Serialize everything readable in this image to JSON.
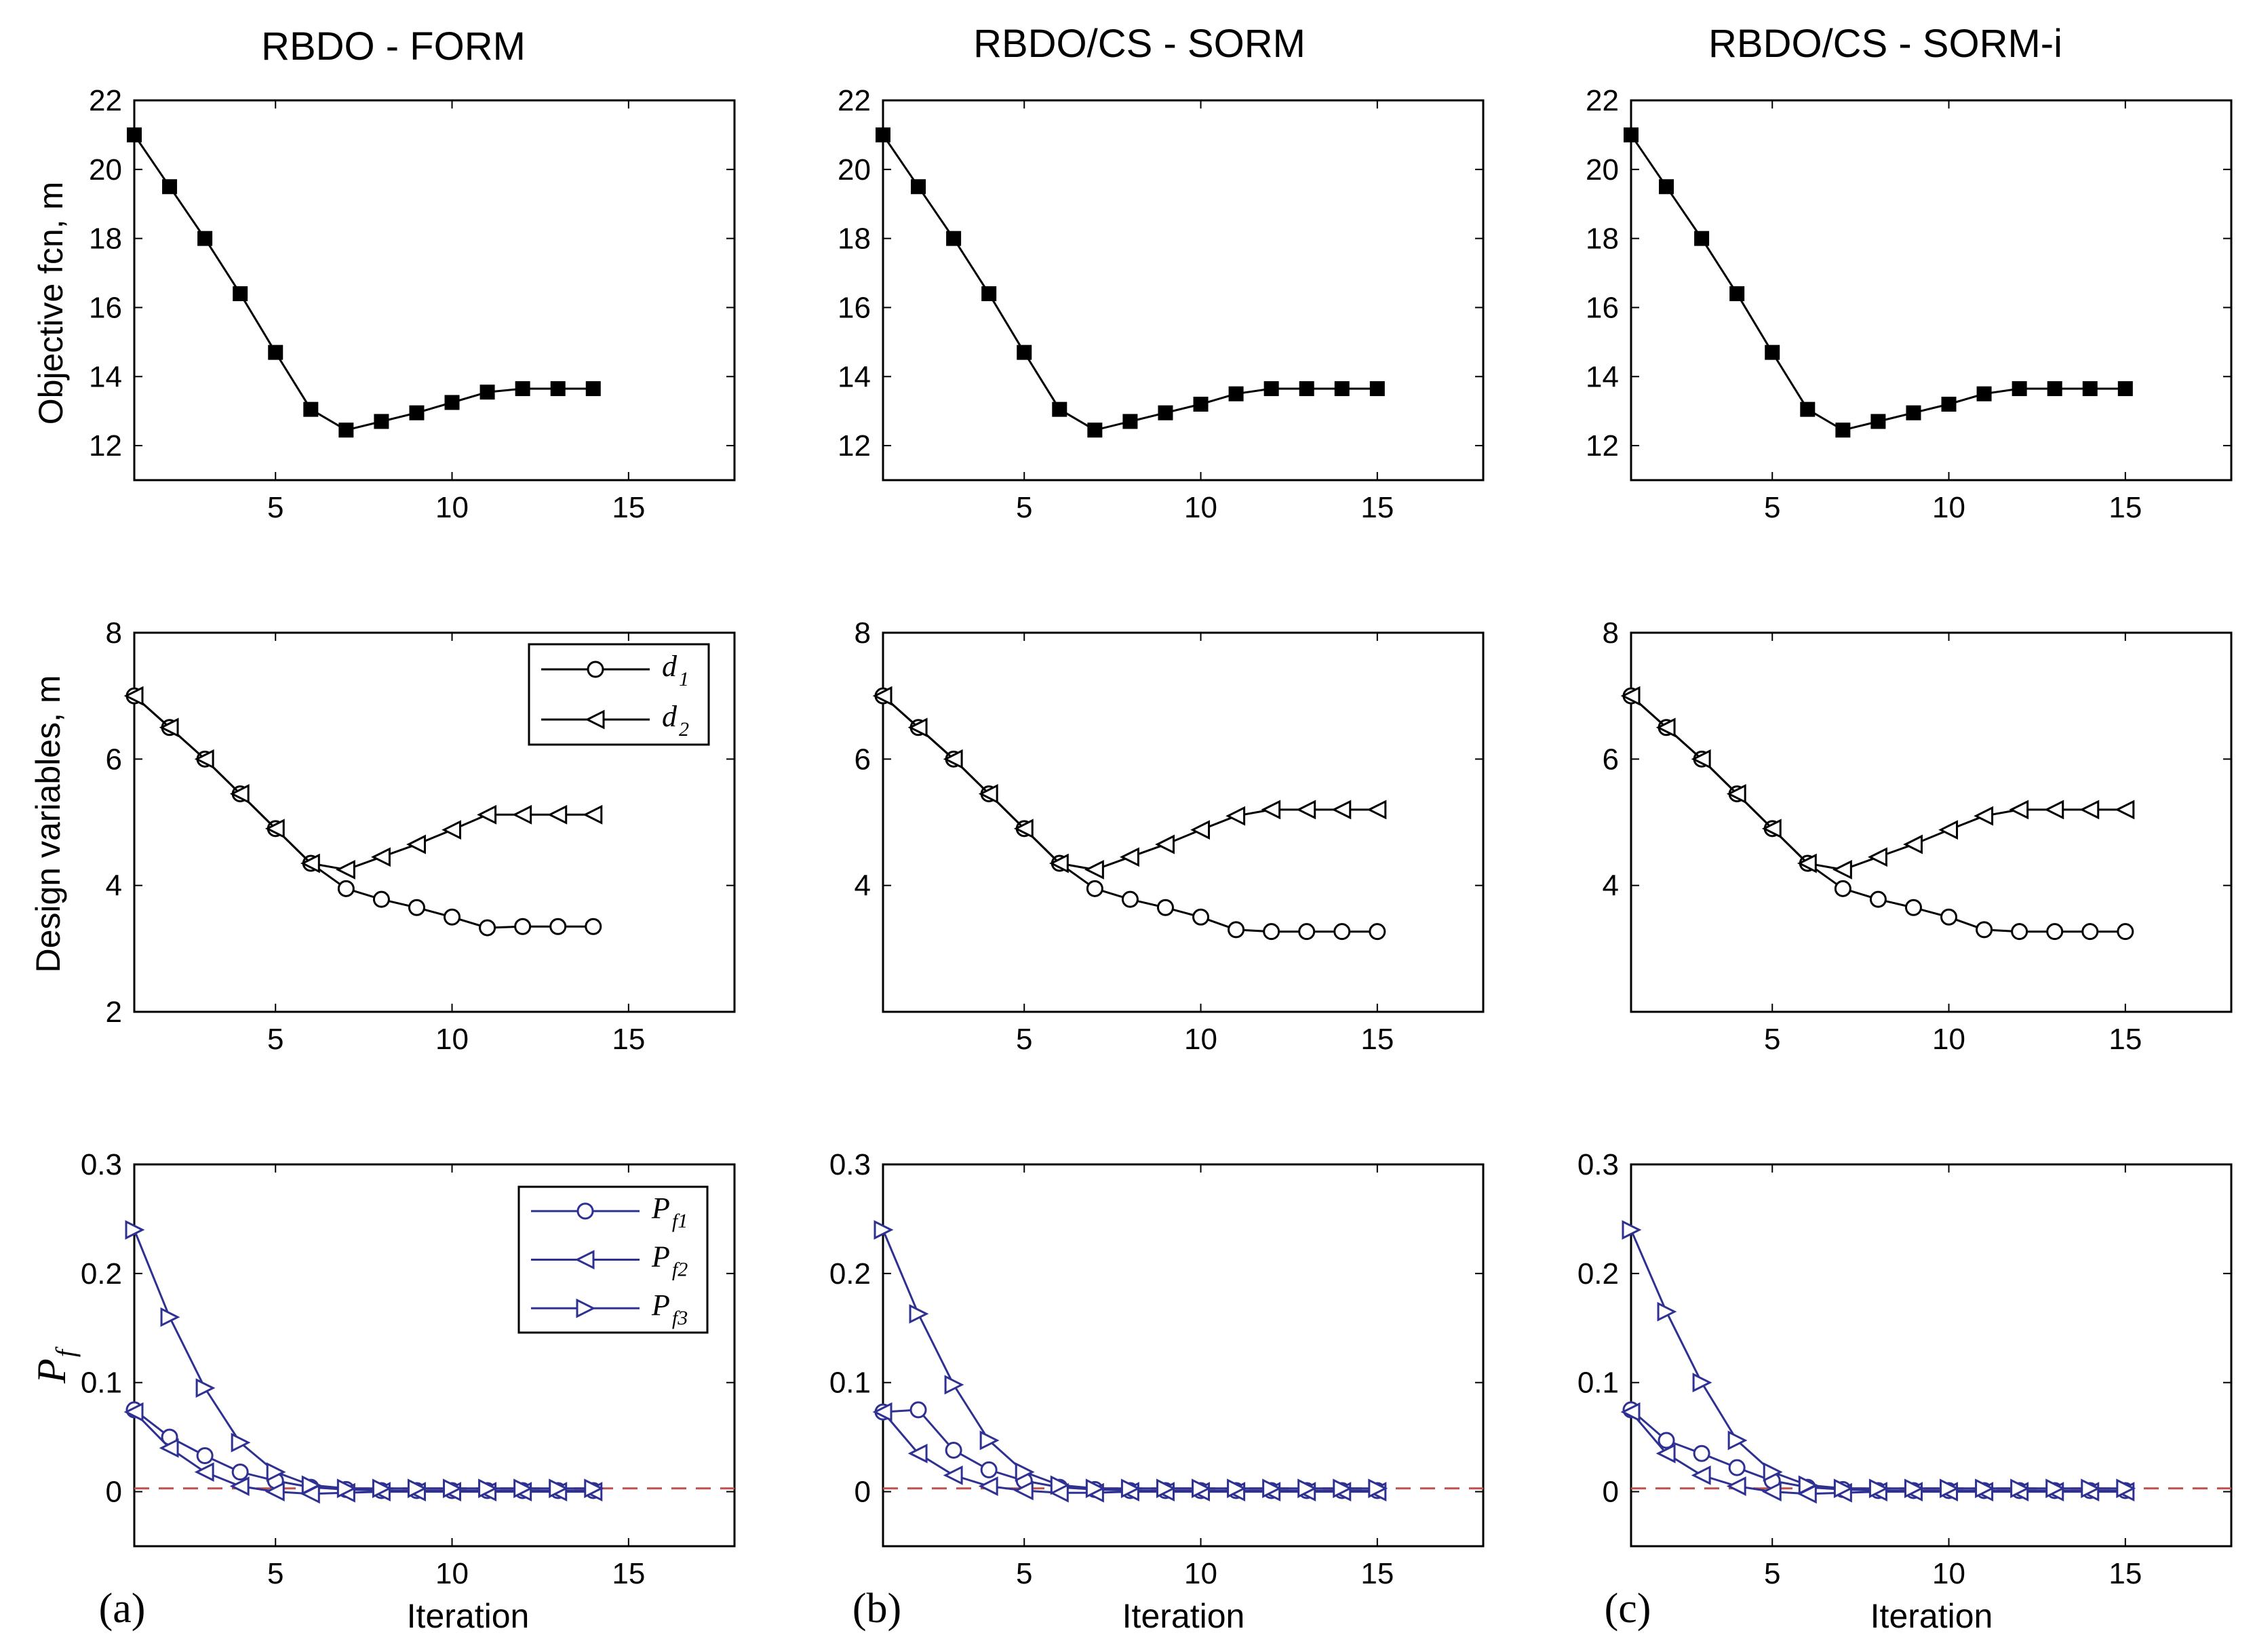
{
  "figure": {
    "columns": [
      {
        "title": "RBDO - FORM",
        "label": "(a)"
      },
      {
        "title": "RBDO/CS - SORM",
        "label": "(b)"
      },
      {
        "title": "RBDO/CS - SORM-i",
        "label": "(c)"
      }
    ],
    "xlabel": "Iteration",
    "ylabel_row1": "Objective fcn, m",
    "ylabel_row2": "Design variables, m",
    "ylabel_row3_main": "P",
    "ylabel_row3_sub": "f",
    "legend_row2": [
      {
        "main": "d",
        "sub": "1",
        "marker": "circle"
      },
      {
        "main": "d",
        "sub": "2",
        "marker": "tri-left"
      }
    ],
    "legend_row3": [
      {
        "main": "P",
        "sub": "f1",
        "marker": "circle"
      },
      {
        "main": "P",
        "sub": "f2",
        "marker": "tri-left"
      },
      {
        "main": "P",
        "sub": "f3",
        "marker": "tri-right"
      }
    ],
    "colors": {
      "black": "#000000",
      "blue": "#2e3192",
      "dash": "#c0504d"
    }
  },
  "chart_data": [
    {
      "type": "line",
      "title": "RBDO - FORM",
      "xlabel": "",
      "ylabel": "Objective fcn, m",
      "xlim": [
        1,
        18
      ],
      "ylim": [
        11,
        22
      ],
      "xticks": [
        5,
        10,
        15
      ],
      "yticks": [
        12,
        14,
        16,
        18,
        20,
        22
      ],
      "series": [
        {
          "name": "objective",
          "marker": "square",
          "x": [
            1,
            2,
            3,
            4,
            5,
            6,
            7,
            8,
            9,
            10,
            11,
            12,
            13,
            14
          ],
          "y": [
            21.0,
            19.5,
            18.0,
            16.4,
            14.7,
            13.05,
            12.45,
            12.7,
            12.95,
            13.25,
            13.55,
            13.65,
            13.65,
            13.65
          ]
        }
      ]
    },
    {
      "type": "line",
      "title": "RBDO/CS - SORM",
      "xlabel": "",
      "ylabel": "",
      "xlim": [
        1,
        18
      ],
      "ylim": [
        11,
        22
      ],
      "xticks": [
        5,
        10,
        15
      ],
      "yticks": [
        12,
        14,
        16,
        18,
        20,
        22
      ],
      "series": [
        {
          "name": "objective",
          "marker": "square",
          "x": [
            1,
            2,
            3,
            4,
            5,
            6,
            7,
            8,
            9,
            10,
            11,
            12,
            13,
            14,
            15
          ],
          "y": [
            21.0,
            19.5,
            18.0,
            16.4,
            14.7,
            13.05,
            12.45,
            12.7,
            12.95,
            13.2,
            13.5,
            13.65,
            13.65,
            13.65,
            13.65
          ]
        }
      ]
    },
    {
      "type": "line",
      "title": "RBDO/CS - SORM-i",
      "xlabel": "",
      "ylabel": "",
      "xlim": [
        1,
        18
      ],
      "ylim": [
        11,
        22
      ],
      "xticks": [
        5,
        10,
        15
      ],
      "yticks": [
        12,
        14,
        16,
        18,
        20,
        22
      ],
      "series": [
        {
          "name": "objective",
          "marker": "square",
          "x": [
            1,
            2,
            3,
            4,
            5,
            6,
            7,
            8,
            9,
            10,
            11,
            12,
            13,
            14,
            15
          ],
          "y": [
            21.0,
            19.5,
            18.0,
            16.4,
            14.7,
            13.05,
            12.45,
            12.7,
            12.95,
            13.2,
            13.5,
            13.65,
            13.65,
            13.65,
            13.65
          ]
        }
      ]
    },
    {
      "type": "line",
      "title": "",
      "xlabel": "",
      "ylabel": "Design variables, m",
      "xlim": [
        1,
        18
      ],
      "ylim": [
        2,
        8
      ],
      "xticks": [
        5,
        10,
        15
      ],
      "yticks": [
        2,
        4,
        6,
        8
      ],
      "legend": true,
      "series": [
        {
          "name": "d1",
          "marker": "circle",
          "x": [
            1,
            2,
            3,
            4,
            5,
            6,
            7,
            8,
            9,
            10,
            11,
            12,
            13,
            14
          ],
          "y": [
            7.0,
            6.5,
            6.0,
            5.45,
            4.9,
            4.35,
            3.95,
            3.78,
            3.65,
            3.5,
            3.33,
            3.35,
            3.35,
            3.35
          ]
        },
        {
          "name": "d2",
          "marker": "tri-left",
          "x": [
            1,
            2,
            3,
            4,
            5,
            6,
            7,
            8,
            9,
            10,
            11,
            12,
            13,
            14
          ],
          "y": [
            7.0,
            6.5,
            6.0,
            5.45,
            4.9,
            4.35,
            4.25,
            4.45,
            4.65,
            4.88,
            5.12,
            5.12,
            5.12,
            5.12
          ]
        }
      ]
    },
    {
      "type": "line",
      "title": "",
      "xlabel": "",
      "ylabel": "",
      "xlim": [
        1,
        18
      ],
      "ylim": [
        2,
        8
      ],
      "xticks": [
        5,
        10,
        15
      ],
      "yticks": [
        4,
        6,
        8
      ],
      "series": [
        {
          "name": "d1",
          "marker": "circle",
          "x": [
            1,
            2,
            3,
            4,
            5,
            6,
            7,
            8,
            9,
            10,
            11,
            12,
            13,
            14,
            15
          ],
          "y": [
            7.0,
            6.5,
            6.0,
            5.45,
            4.9,
            4.35,
            3.95,
            3.78,
            3.65,
            3.5,
            3.3,
            3.27,
            3.27,
            3.27,
            3.27
          ]
        },
        {
          "name": "d2",
          "marker": "tri-left",
          "x": [
            1,
            2,
            3,
            4,
            5,
            6,
            7,
            8,
            9,
            10,
            11,
            12,
            13,
            14,
            15
          ],
          "y": [
            7.0,
            6.5,
            6.0,
            5.45,
            4.9,
            4.35,
            4.25,
            4.45,
            4.65,
            4.88,
            5.1,
            5.2,
            5.2,
            5.2,
            5.2
          ]
        }
      ]
    },
    {
      "type": "line",
      "title": "",
      "xlabel": "",
      "ylabel": "",
      "xlim": [
        1,
        18
      ],
      "ylim": [
        2,
        8
      ],
      "xticks": [
        5,
        10,
        15
      ],
      "yticks": [
        4,
        6,
        8
      ],
      "series": [
        {
          "name": "d1",
          "marker": "circle",
          "x": [
            1,
            2,
            3,
            4,
            5,
            6,
            7,
            8,
            9,
            10,
            11,
            12,
            13,
            14,
            15
          ],
          "y": [
            7.0,
            6.5,
            6.0,
            5.45,
            4.9,
            4.35,
            3.95,
            3.78,
            3.65,
            3.5,
            3.3,
            3.27,
            3.27,
            3.27,
            3.27
          ]
        },
        {
          "name": "d2",
          "marker": "tri-left",
          "x": [
            1,
            2,
            3,
            4,
            5,
            6,
            7,
            8,
            9,
            10,
            11,
            12,
            13,
            14,
            15
          ],
          "y": [
            7.0,
            6.5,
            6.0,
            5.45,
            4.9,
            4.35,
            4.25,
            4.45,
            4.65,
            4.88,
            5.1,
            5.2,
            5.2,
            5.2,
            5.2
          ]
        }
      ]
    },
    {
      "type": "line",
      "title": "",
      "xlabel": "Iteration",
      "ylabel": "P_f",
      "xlim": [
        1,
        18
      ],
      "ylim": [
        -0.05,
        0.3
      ],
      "xticks": [
        5,
        10,
        15
      ],
      "yticks": [
        0,
        0.1,
        0.2,
        0.3
      ],
      "target_line": 0.003,
      "legend": true,
      "series": [
        {
          "name": "Pf1",
          "marker": "circle",
          "x": [
            1,
            2,
            3,
            4,
            5,
            6,
            7,
            8,
            9,
            10,
            11,
            12,
            13,
            14
          ],
          "y": [
            0.075,
            0.05,
            0.033,
            0.018,
            0.01,
            0.004,
            0.002,
            0.001,
            0.001,
            0.001,
            0.001,
            0.001,
            0.001,
            0.001
          ]
        },
        {
          "name": "Pf2",
          "marker": "tri-left",
          "x": [
            1,
            2,
            3,
            4,
            5,
            6,
            7,
            8,
            9,
            10,
            11,
            12,
            13,
            14
          ],
          "y": [
            0.073,
            0.04,
            0.018,
            0.005,
            0.0,
            -0.002,
            -0.001,
            0.0,
            0.0,
            0.0,
            0.0,
            0.0,
            0.0,
            0.0
          ]
        },
        {
          "name": "Pf3",
          "marker": "tri-right",
          "x": [
            1,
            2,
            3,
            4,
            5,
            6,
            7,
            8,
            9,
            10,
            11,
            12,
            13,
            14
          ],
          "y": [
            0.24,
            0.16,
            0.095,
            0.045,
            0.018,
            0.006,
            0.003,
            0.003,
            0.003,
            0.003,
            0.003,
            0.003,
            0.003,
            0.003
          ]
        }
      ]
    },
    {
      "type": "line",
      "title": "",
      "xlabel": "Iteration",
      "ylabel": "",
      "xlim": [
        1,
        18
      ],
      "ylim": [
        -0.05,
        0.3
      ],
      "xticks": [
        5,
        10,
        15
      ],
      "yticks": [
        0,
        0.1,
        0.2,
        0.3
      ],
      "target_line": 0.003,
      "series": [
        {
          "name": "Pf1",
          "marker": "circle",
          "x": [
            1,
            2,
            3,
            4,
            5,
            6,
            7,
            8,
            9,
            10,
            11,
            12,
            13,
            14,
            15
          ],
          "y": [
            0.073,
            0.075,
            0.038,
            0.02,
            0.01,
            0.004,
            0.002,
            0.001,
            0.001,
            0.001,
            0.001,
            0.001,
            0.001,
            0.001,
            0.001
          ]
        },
        {
          "name": "Pf2",
          "marker": "tri-left",
          "x": [
            1,
            2,
            3,
            4,
            5,
            6,
            7,
            8,
            9,
            10,
            11,
            12,
            13,
            14,
            15
          ],
          "y": [
            0.073,
            0.035,
            0.015,
            0.005,
            0.001,
            -0.001,
            -0.001,
            0.0,
            0.0,
            0.0,
            0.0,
            0.0,
            0.0,
            0.0,
            0.0
          ]
        },
        {
          "name": "Pf3",
          "marker": "tri-right",
          "x": [
            1,
            2,
            3,
            4,
            5,
            6,
            7,
            8,
            9,
            10,
            11,
            12,
            13,
            14,
            15
          ],
          "y": [
            0.24,
            0.163,
            0.098,
            0.047,
            0.018,
            0.006,
            0.003,
            0.003,
            0.003,
            0.003,
            0.003,
            0.003,
            0.003,
            0.003,
            0.003
          ]
        }
      ]
    },
    {
      "type": "line",
      "title": "",
      "xlabel": "Iteration",
      "ylabel": "",
      "xlim": [
        1,
        18
      ],
      "ylim": [
        -0.05,
        0.3
      ],
      "xticks": [
        5,
        10,
        15
      ],
      "yticks": [
        0,
        0.1,
        0.2,
        0.3
      ],
      "target_line": 0.003,
      "series": [
        {
          "name": "Pf1",
          "marker": "circle",
          "x": [
            1,
            2,
            3,
            4,
            5,
            6,
            7,
            8,
            9,
            10,
            11,
            12,
            13,
            14,
            15
          ],
          "y": [
            0.075,
            0.047,
            0.035,
            0.022,
            0.01,
            0.004,
            0.002,
            0.001,
            0.001,
            0.001,
            0.001,
            0.001,
            0.001,
            0.001,
            0.001
          ]
        },
        {
          "name": "Pf2",
          "marker": "tri-left",
          "x": [
            1,
            2,
            3,
            4,
            5,
            6,
            7,
            8,
            9,
            10,
            11,
            12,
            13,
            14,
            15
          ],
          "y": [
            0.073,
            0.035,
            0.015,
            0.005,
            0.0,
            -0.002,
            -0.001,
            0.0,
            0.0,
            0.0,
            0.0,
            0.0,
            0.0,
            0.0,
            0.0
          ]
        },
        {
          "name": "Pf3",
          "marker": "tri-right",
          "x": [
            1,
            2,
            3,
            4,
            5,
            6,
            7,
            8,
            9,
            10,
            11,
            12,
            13,
            14,
            15
          ],
          "y": [
            0.24,
            0.165,
            0.1,
            0.047,
            0.018,
            0.006,
            0.003,
            0.003,
            0.003,
            0.003,
            0.003,
            0.003,
            0.003,
            0.003,
            0.003
          ]
        }
      ]
    }
  ]
}
